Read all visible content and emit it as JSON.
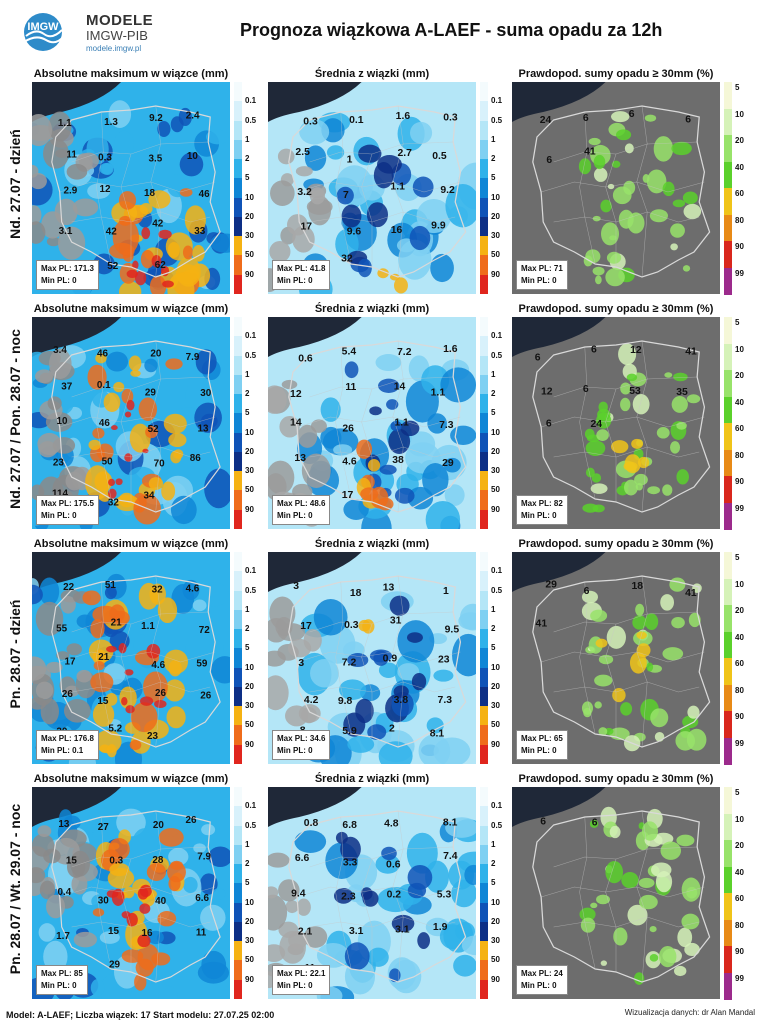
{
  "header": {
    "logo_mark": "IMGW",
    "logo_name": "MODELE",
    "logo_sub": "IMGW-PIB",
    "logo_url": "modele.imgw.pl",
    "title": "Prognoza wiązkowa A-LAEF - suma opadu za 12h"
  },
  "panel_titles": {
    "max": "Absolutne maksimum w wiązce (mm)",
    "mean": "Średnia z wiązki (mm)",
    "prob": "Prawdopod. sumy opadu ≥ 30mm (%)"
  },
  "colorbars": {
    "precip": {
      "labels": [
        "0.1",
        "0.5",
        "1",
        "2",
        "5",
        "10",
        "20",
        "30",
        "50",
        "90"
      ],
      "colors": [
        "#f4fbfd",
        "#d8f1fb",
        "#b4e6f7",
        "#7fd0f2",
        "#2fb2ea",
        "#0f86d6",
        "#0f53b7",
        "#0d2f86",
        "#f5b213",
        "#ef6c1b",
        "#e0261e"
      ]
    },
    "prob": {
      "labels": [
        "5",
        "10",
        "20",
        "40",
        "60",
        "80",
        "90",
        "99"
      ],
      "colors": [
        "#f5f7d7",
        "#d5f2b8",
        "#98e36a",
        "#5bd12b",
        "#f0c419",
        "#e88a17",
        "#d9271d",
        "#9c2a8c"
      ]
    }
  },
  "stats_labels": {
    "max": "Max PL:",
    "min": "Min PL:"
  },
  "rows": [
    {
      "label": "Nd. 27.07 - dzień",
      "max_panel": {
        "max_pl": "171.3",
        "min_pl": "0",
        "values": [
          "1.1",
          "1.3",
          "9.2",
          "2.4",
          "11",
          "0.3",
          "3.5",
          "10",
          "2.9",
          "12",
          "18",
          "46",
          "3.1",
          "42",
          "42",
          "33",
          "22",
          "52",
          "62"
        ]
      },
      "mean_panel": {
        "max_pl": "41.8",
        "min_pl": "0",
        "values": [
          "0.3",
          "0.1",
          "1.6",
          "0.3",
          "2.5",
          "1",
          "2.7",
          "0.5",
          "3.2",
          "7",
          "1.1",
          "9.2",
          "17",
          "9.6",
          "16",
          "9.9",
          "15",
          "32"
        ]
      },
      "prob_panel": {
        "max_pl": "71",
        "min_pl": "0",
        "values": [
          "24",
          "6",
          "6",
          "6",
          "6",
          "41"
        ]
      }
    },
    {
      "label": "Nd. 27.07 / Pon. 28.07 - noc",
      "max_panel": {
        "max_pl": "175.5",
        "min_pl": "0",
        "values": [
          "3.4",
          "46",
          "20",
          "7.9",
          "37",
          "0.1",
          "29",
          "30",
          "10",
          "46",
          "52",
          "13",
          "23",
          "50",
          "70",
          "86",
          "114",
          "32",
          "34"
        ]
      },
      "mean_panel": {
        "max_pl": "48.6",
        "min_pl": "0",
        "values": [
          "0.6",
          "5.4",
          "7.2",
          "1.6",
          "12",
          "11",
          "14",
          "1.1",
          "14",
          "26",
          "1.1",
          "7.3",
          "13",
          "4.6",
          "38",
          "29",
          "3",
          "17"
        ]
      },
      "prob_panel": {
        "max_pl": "82",
        "min_pl": "0",
        "values": [
          "6",
          "6",
          "12",
          "41",
          "12",
          "6",
          "53",
          "35",
          "6",
          "24"
        ]
      }
    },
    {
      "label": "Pn. 28.07 - dzień",
      "max_panel": {
        "max_pl": "176.8",
        "min_pl": "0.1",
        "values": [
          "22",
          "51",
          "32",
          "4.6",
          "55",
          "21",
          "1.1",
          "72",
          "17",
          "21",
          "4.6",
          "59",
          "26",
          "15",
          "26",
          "26",
          "20",
          "5.2",
          "23"
        ]
      },
      "mean_panel": {
        "max_pl": "34.6",
        "min_pl": "0",
        "values": [
          "3",
          "18",
          "13",
          "1",
          "17",
          "0.3",
          "31",
          "9.5",
          "3",
          "7.2",
          "0.9",
          "23",
          "4.2",
          "9.8",
          "3.8",
          "7.3",
          "8",
          "5.9",
          "2",
          "8.1"
        ]
      },
      "prob_panel": {
        "max_pl": "65",
        "min_pl": "0",
        "values": [
          "29",
          "6",
          "18",
          "41",
          "41"
        ]
      }
    },
    {
      "label": "Pn. 28.07 / Wt. 29.07 - noc",
      "max_panel": {
        "max_pl": "85",
        "min_pl": "0",
        "values": [
          "13",
          "27",
          "20",
          "26",
          "15",
          "0.3",
          "28",
          "7.9",
          "0.4",
          "30",
          "40",
          "6.6",
          "1.7",
          "15",
          "16",
          "11",
          "7.6",
          "29"
        ]
      },
      "mean_panel": {
        "max_pl": "22.1",
        "min_pl": "0",
        "values": [
          "0.8",
          "6.8",
          "4.8",
          "8.1",
          "6.6",
          "3.3",
          "0.6",
          "7.4",
          "9.4",
          "2.3",
          "0.2",
          "5.3",
          "2.1",
          "3.1",
          "3.1",
          "1.9",
          "11"
        ]
      },
      "prob_panel": {
        "max_pl": "24",
        "min_pl": "0",
        "values": [
          "6",
          "6"
        ]
      }
    }
  ],
  "footer": {
    "info": "Model: A-LAEF; Liczba wiązek: 17    Start modelu: 27.07.25 02:00",
    "credit": "Wizualizacja danych: dr Alan Mandal"
  }
}
